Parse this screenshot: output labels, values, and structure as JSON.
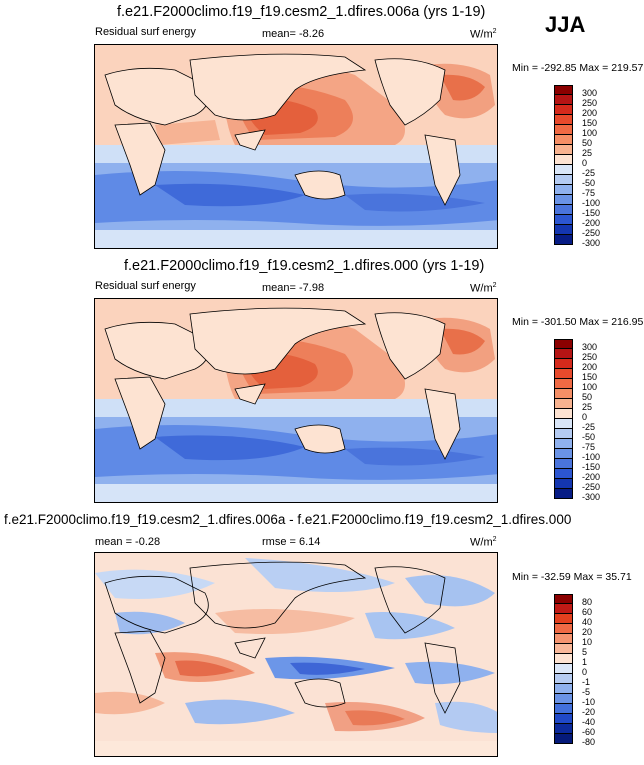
{
  "header": {
    "season": "JJA"
  },
  "panels": [
    {
      "title": "f.e21.F2000climo.f19_f19.cesm2_1.dfires.006a (yrs 1-19)",
      "left_label": "Residual surf energy",
      "center_label": "mean=  -8.26",
      "units": "W/m",
      "units_sup": "2",
      "minmax": "Min = -292.85 Max = 219.57",
      "colorbar_ticks": [
        "300",
        "250",
        "200",
        "150",
        "100",
        "50",
        "25",
        "0",
        "-25",
        "-50",
        "-75",
        "-100",
        "-150",
        "-200",
        "-250",
        "-300"
      ]
    },
    {
      "title": "f.e21.F2000climo.f19_f19.cesm2_1.dfires.000 (yrs 1-19)",
      "left_label": "Residual surf energy",
      "center_label": "mean=  -7.98",
      "units": "W/m",
      "units_sup": "2",
      "minmax": "Min = -301.50 Max = 216.95",
      "colorbar_ticks": [
        "300",
        "250",
        "200",
        "150",
        "100",
        "50",
        "25",
        "0",
        "-25",
        "-50",
        "-75",
        "-100",
        "-150",
        "-200",
        "-250",
        "-300"
      ]
    },
    {
      "title": "f.e21.F2000climo.f19_f19.cesm2_1.dfires.006a - f.e21.F2000climo.f19_f19.cesm2_1.dfires.000",
      "left_label": "mean =  -0.28",
      "center_label": "rmse =  6.14",
      "units": "W/m",
      "units_sup": "2",
      "minmax": "Min = -32.59 Max =  35.71",
      "colorbar_ticks": [
        "80",
        "60",
        "40",
        "20",
        "10",
        "5",
        "1",
        "0",
        "-1",
        "-5",
        "-10",
        "-20",
        "-40",
        "-60",
        "-80"
      ]
    }
  ],
  "colors": {
    "ocean_warm": "#f4a585",
    "ocean_hot": "#e8603c",
    "ocean_cold": "#6f97e8",
    "ocean_deep_cold": "#2c56d1",
    "land_neutral": "#fde3d2",
    "frame": "#000000"
  }
}
